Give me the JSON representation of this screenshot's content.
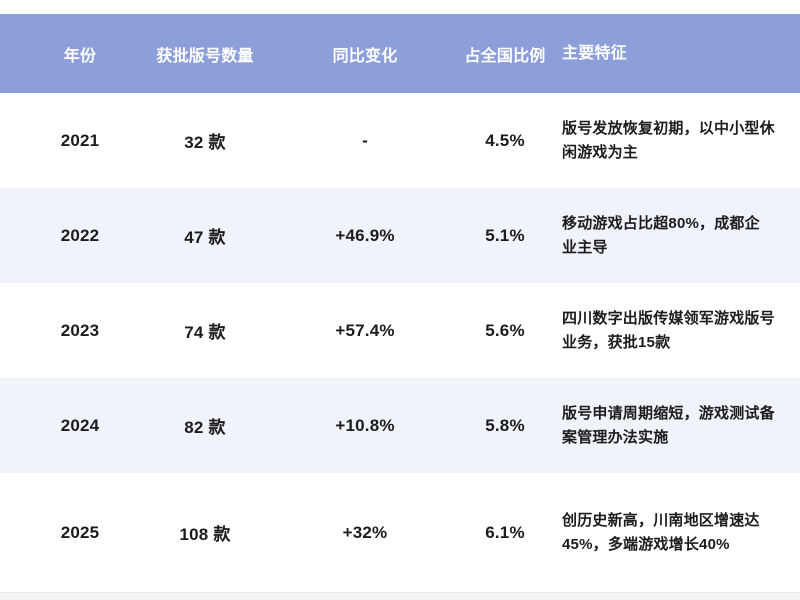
{
  "table": {
    "columns": [
      {
        "key": "year",
        "label": "年份"
      },
      {
        "key": "count",
        "label": "获批版号数量"
      },
      {
        "key": "yoy",
        "label": "同比变化"
      },
      {
        "key": "share",
        "label": "占全国比例"
      },
      {
        "key": "features",
        "label": "主要特征"
      }
    ],
    "rows": [
      {
        "year": "2021",
        "count": "32 款",
        "yoy": "-",
        "share": "4.5%",
        "features": "版号发放恢复初期，以中小型休闲游戏为主"
      },
      {
        "year": "2022",
        "count": "47 款",
        "yoy": "+46.9%",
        "share": "5.1%",
        "features": "移动游戏占比超80%，成都企业主导"
      },
      {
        "year": "2023",
        "count": "74 款",
        "yoy": "+57.4%",
        "share": "5.6%",
        "features": "四川数字出版传媒领军游戏版号业务，获批15款"
      },
      {
        "year": "2024",
        "count": "82 款",
        "yoy": "+10.8%",
        "share": "5.8%",
        "features": "版号申请周期缩短，游戏测试备案管理办法实施"
      },
      {
        "year": "2025",
        "count": "108 款",
        "yoy": "+32%",
        "share": "6.1%",
        "features": "创历史新高，川南地区增速达45%，多端游戏增长40%"
      }
    ]
  },
  "chart_data": {
    "type": "table",
    "columns": [
      "年份",
      "获批版号数量",
      "同比变化",
      "占全国比例",
      "主要特征"
    ],
    "rows": [
      [
        "2021",
        "32 款",
        "-",
        "4.5%",
        "版号发放恢复初期，以中小型休闲游戏为主"
      ],
      [
        "2022",
        "47 款",
        "+46.9%",
        "5.1%",
        "移动游戏占比超80%，成都企业主导"
      ],
      [
        "2023",
        "74 款",
        "+57.4%",
        "5.6%",
        "四川数字出版传媒领军游戏版号业务，获批15款"
      ],
      [
        "2024",
        "82 款",
        "+10.8%",
        "5.8%",
        "版号申请周期缩短，游戏测试备案管理办法实施"
      ],
      [
        "2025",
        "108 款",
        "+32%",
        "6.1%",
        "创历史新高，川南地区增速达45%，多端游戏增长40%"
      ]
    ],
    "numeric": {
      "years": [
        2021,
        2022,
        2023,
        2024,
        2025
      ],
      "approved_counts": [
        32,
        47,
        74,
        82,
        108
      ],
      "yoy_change_pct": [
        null,
        46.9,
        57.4,
        10.8,
        32
      ],
      "national_share_pct": [
        4.5,
        5.1,
        5.6,
        5.8,
        6.1
      ]
    }
  },
  "colors": {
    "header_bg": "#8C9FD8",
    "header_text": "#FFFFFF",
    "row_bg": "#FFFFFF",
    "row_alt_bg": "#F0F3FA",
    "body_text": "#1C1C1E",
    "bottom_strip": "#F3F5F7"
  }
}
